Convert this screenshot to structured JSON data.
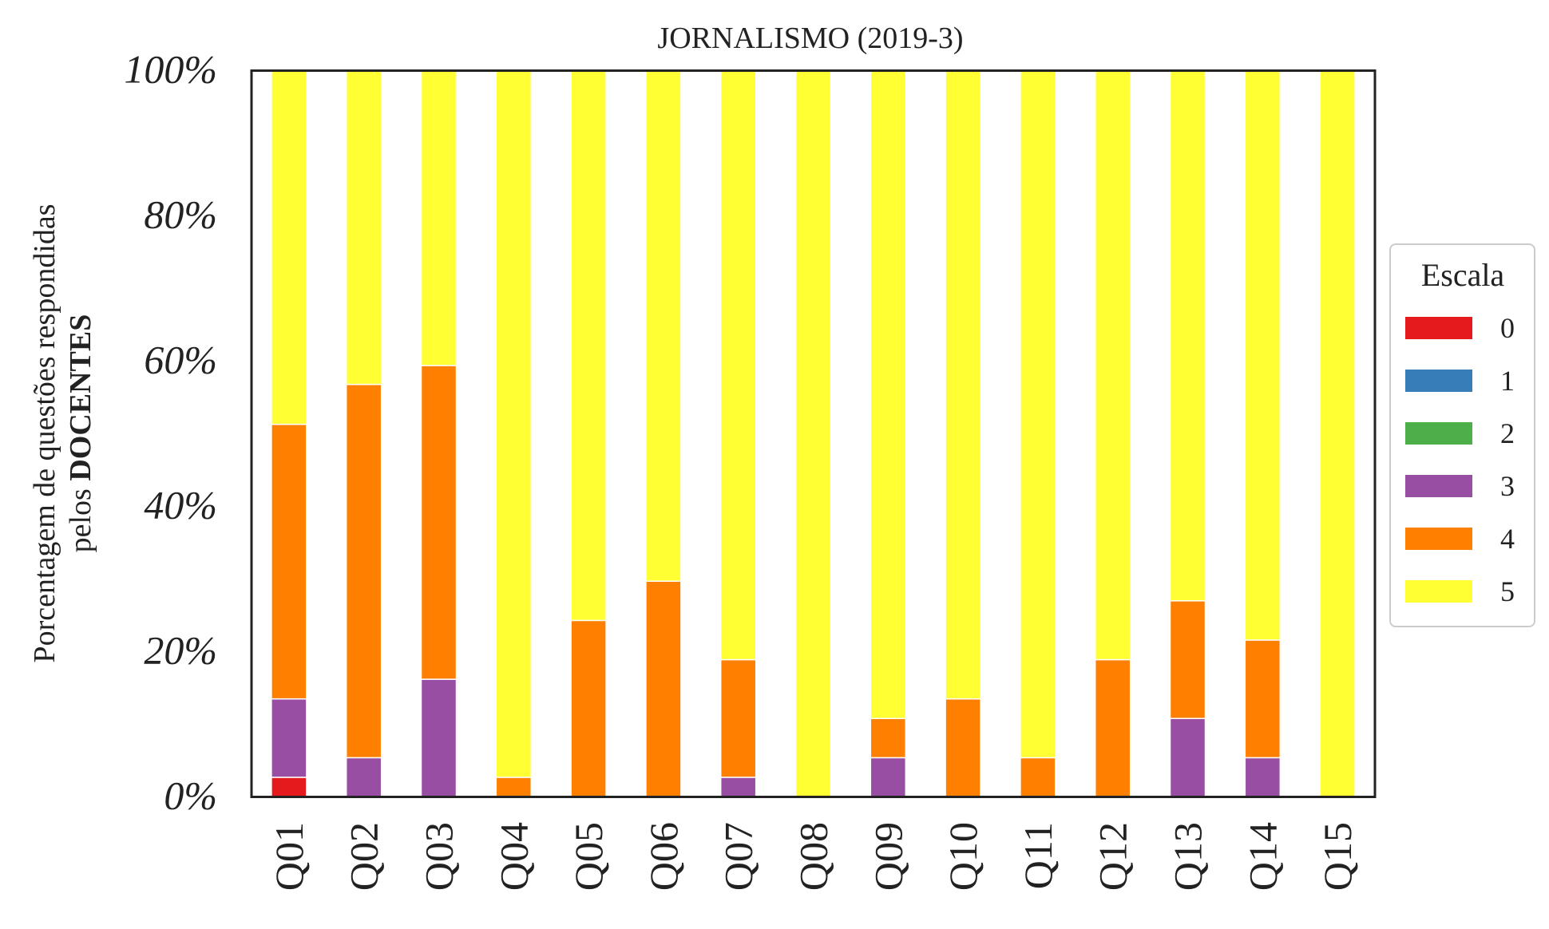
{
  "chart_data": {
    "type": "bar",
    "stacked": true,
    "title": "JORNALISMO (2019-3)",
    "ylabel_line1": "Porcentagem de questões respondidas",
    "ylabel_line2_prefix": "pelos ",
    "ylabel_line2_bold": "DOCENTES",
    "xlabel": "",
    "ylim": [
      0,
      100
    ],
    "yticks": [
      {
        "value": 0,
        "label": "0%"
      },
      {
        "value": 20,
        "label": "20%"
      },
      {
        "value": 40,
        "label": "40%"
      },
      {
        "value": 60,
        "label": "60%"
      },
      {
        "value": 80,
        "label": "80%"
      },
      {
        "value": 100,
        "label": "100%"
      }
    ],
    "categories": [
      "Q01",
      "Q02",
      "Q03",
      "Q04",
      "Q05",
      "Q06",
      "Q07",
      "Q08",
      "Q09",
      "Q10",
      "Q11",
      "Q12",
      "Q13",
      "Q14",
      "Q15"
    ],
    "legend_title": "Escala",
    "legend_position": "right",
    "grid": false,
    "series": [
      {
        "name": "0",
        "color": "#e41a1c",
        "values": [
          2.7,
          0,
          0,
          0,
          0,
          0,
          0,
          0,
          0,
          0,
          0,
          0,
          0,
          0,
          0
        ]
      },
      {
        "name": "1",
        "color": "#377eb8",
        "values": [
          0,
          0,
          0,
          0,
          0,
          0,
          0,
          0,
          0,
          0,
          0,
          0,
          0,
          0,
          0
        ]
      },
      {
        "name": "2",
        "color": "#4daf4a",
        "values": [
          0,
          0,
          0,
          0,
          0,
          0,
          0,
          0,
          0,
          0,
          0,
          0,
          0,
          0,
          0
        ]
      },
      {
        "name": "3",
        "color": "#984ea3",
        "values": [
          10.8,
          5.4,
          16.2,
          0,
          0,
          0,
          2.7,
          0,
          5.4,
          0,
          0,
          0,
          10.8,
          5.4,
          0
        ]
      },
      {
        "name": "4",
        "color": "#ff7f00",
        "values": [
          37.8,
          51.4,
          43.2,
          2.7,
          24.3,
          29.7,
          16.2,
          0,
          5.4,
          13.5,
          5.4,
          18.9,
          16.2,
          16.2,
          0
        ]
      },
      {
        "name": "5",
        "color": "#ffff33",
        "values": [
          48.7,
          43.2,
          40.6,
          97.3,
          75.7,
          70.3,
          81.1,
          100,
          89.2,
          86.5,
          94.6,
          81.1,
          73.0,
          78.4,
          100
        ]
      }
    ]
  }
}
